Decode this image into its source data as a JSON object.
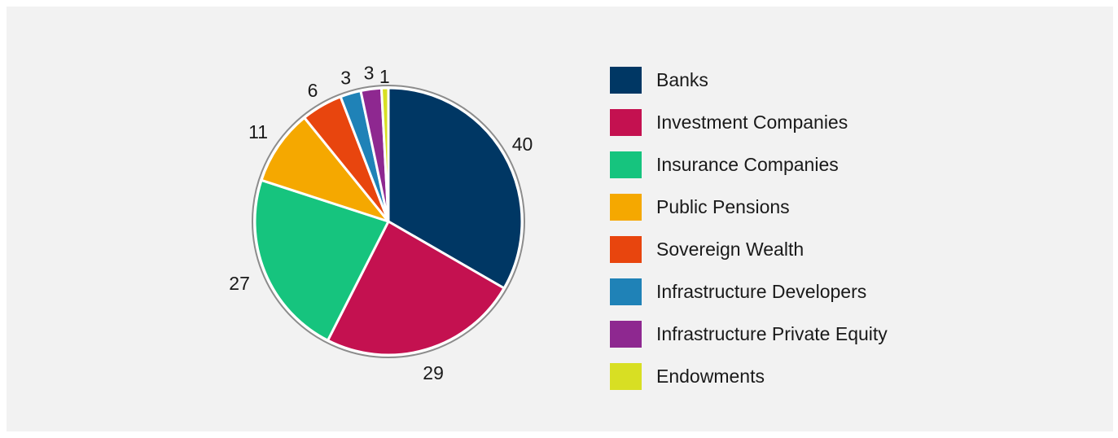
{
  "chart_data": {
    "type": "pie",
    "title": "",
    "categories": [
      "Banks",
      "Investment Companies",
      "Insurance Companies",
      "Public Pensions",
      "Sovereign Wealth",
      "Infrastructure Developers",
      "Infrastructure Private Equity",
      "Endowments"
    ],
    "values": [
      40,
      29,
      27,
      11,
      6,
      3,
      3,
      1
    ],
    "colors": [
      "#003764",
      "#c41150",
      "#16c47e",
      "#f5a800",
      "#e8450e",
      "#1f82b7",
      "#8e2890",
      "#d8df23"
    ],
    "start": "12 o'clock",
    "direction": "clockwise",
    "legend": "right"
  }
}
